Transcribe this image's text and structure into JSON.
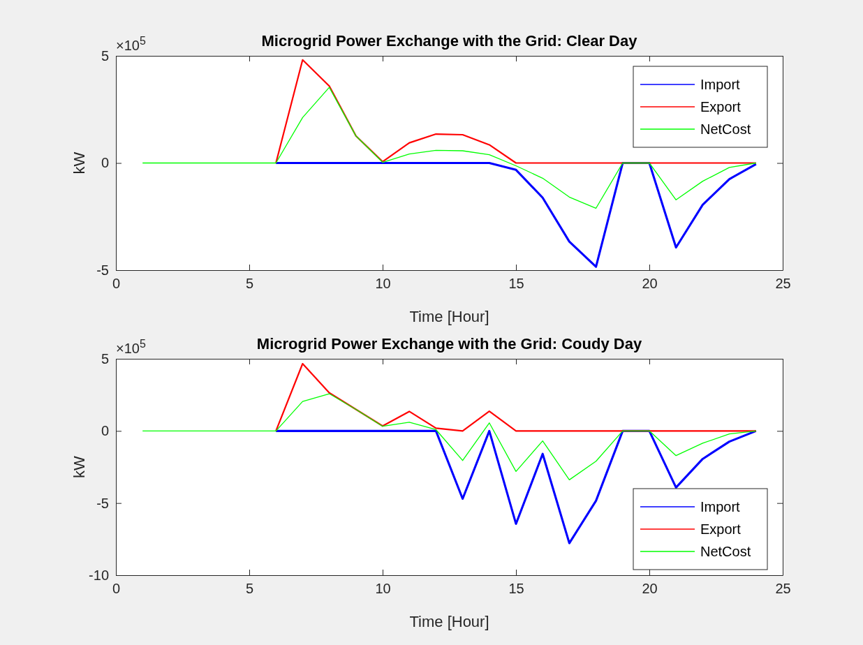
{
  "chart_data": [
    {
      "type": "line",
      "title": "Microgrid Power Exchange with the Grid: Clear Day",
      "xlabel": "Time [Hour]",
      "ylabel": "kW",
      "annotations": [
        "×10$^{5}$"
      ],
      "x": [
        1,
        2,
        3,
        4,
        5,
        6,
        7,
        8,
        9,
        10,
        11,
        12,
        13,
        14,
        15,
        16,
        17,
        18,
        19,
        20,
        21,
        22,
        23,
        24
      ],
      "xlim": [
        0,
        25
      ],
      "xticks": [
        0,
        5,
        10,
        15,
        20,
        25
      ],
      "ylim": [
        -5,
        5
      ],
      "yticks": [
        -5,
        0,
        5
      ],
      "legend": "top right",
      "series": [
        {
          "name": "Import",
          "color": "#0000ff",
          "values": [
            null,
            null,
            null,
            null,
            null,
            0,
            0,
            0,
            0,
            0,
            0,
            0,
            0,
            0,
            -0.32,
            -1.62,
            -3.67,
            -4.84,
            0,
            0,
            -3.94,
            -1.95,
            -0.75,
            -0.05
          ]
        },
        {
          "name": "Export",
          "color": "#ff0000",
          "values": [
            null,
            null,
            null,
            null,
            null,
            0,
            4.81,
            3.59,
            1.26,
            0.06,
            0.94,
            1.35,
            1.32,
            0.85,
            0,
            0,
            0,
            0,
            0,
            0,
            0,
            0,
            0,
            0
          ]
        },
        {
          "name": "NetCost",
          "color": "#00ff00",
          "values": [
            0,
            0,
            0,
            0,
            0,
            0,
            2.12,
            3.53,
            1.26,
            0.03,
            0.42,
            0.59,
            0.57,
            0.39,
            -0.13,
            -0.71,
            -1.59,
            -2.11,
            0,
            0,
            -1.72,
            -0.85,
            -0.21,
            0
          ]
        }
      ]
    },
    {
      "type": "line",
      "title": "Microgrid Power Exchange with the Grid: Coudy Day",
      "xlabel": "Time [Hour]",
      "ylabel": "kW",
      "annotations": [
        "×10$^{5}$"
      ],
      "x": [
        1,
        2,
        3,
        4,
        5,
        6,
        7,
        8,
        9,
        10,
        11,
        12,
        13,
        14,
        15,
        16,
        17,
        18,
        19,
        20,
        21,
        22,
        23,
        24
      ],
      "xlim": [
        0,
        25
      ],
      "xticks": [
        0,
        5,
        10,
        15,
        20,
        25
      ],
      "ylim": [
        -10,
        5
      ],
      "yticks": [
        -10,
        -5,
        0,
        5
      ],
      "legend": "bottom right",
      "series": [
        {
          "name": "Import",
          "color": "#0000ff",
          "values": [
            null,
            null,
            null,
            null,
            null,
            0,
            0,
            0,
            0,
            0,
            0,
            0,
            -4.7,
            0,
            -6.44,
            -1.59,
            -7.78,
            -4.84,
            0,
            0,
            -3.92,
            -1.94,
            -0.74,
            0
          ]
        },
        {
          "name": "Export",
          "color": "#ff0000",
          "values": [
            null,
            null,
            null,
            null,
            null,
            0,
            4.66,
            2.64,
            1.49,
            0.34,
            1.35,
            0.19,
            0,
            1.36,
            0,
            0,
            0,
            0,
            0,
            0,
            0,
            0,
            0,
            0
          ]
        },
        {
          "name": "NetCost",
          "color": "#00ff00",
          "values": [
            0,
            0,
            0,
            0,
            0,
            0,
            2.04,
            2.58,
            1.49,
            0.32,
            0.6,
            0.09,
            -2.05,
            0.56,
            -2.81,
            -0.69,
            -3.39,
            -2.1,
            0,
            0,
            -1.71,
            -0.85,
            -0.21,
            0
          ]
        }
      ]
    }
  ]
}
